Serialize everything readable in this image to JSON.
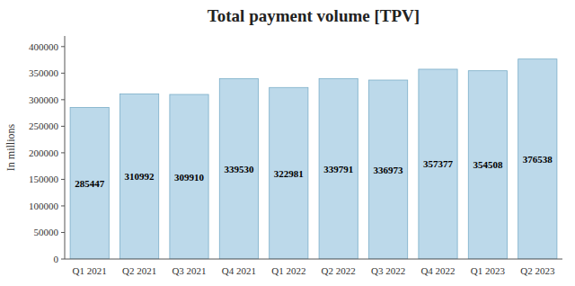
{
  "chart_data": {
    "type": "bar",
    "title": "Total payment volume [TPV]",
    "ylabel": "In millions",
    "categories": [
      "Q1 2021",
      "Q2 2021",
      "Q3 2021",
      "Q4 2021",
      "Q1 2022",
      "Q2 2022",
      "Q3 2022",
      "Q4 2022",
      "Q1 2023",
      "Q2 2023"
    ],
    "values": [
      285447,
      310992,
      309910,
      339530,
      322981,
      339791,
      336973,
      357377,
      354508,
      376538
    ],
    "color": "#bcd9ea",
    "ylim": [
      0,
      420000
    ],
    "yticks": [
      0,
      50000,
      100000,
      150000,
      200000,
      250000,
      300000,
      350000,
      400000
    ],
    "grid": false,
    "data_labels": true
  }
}
